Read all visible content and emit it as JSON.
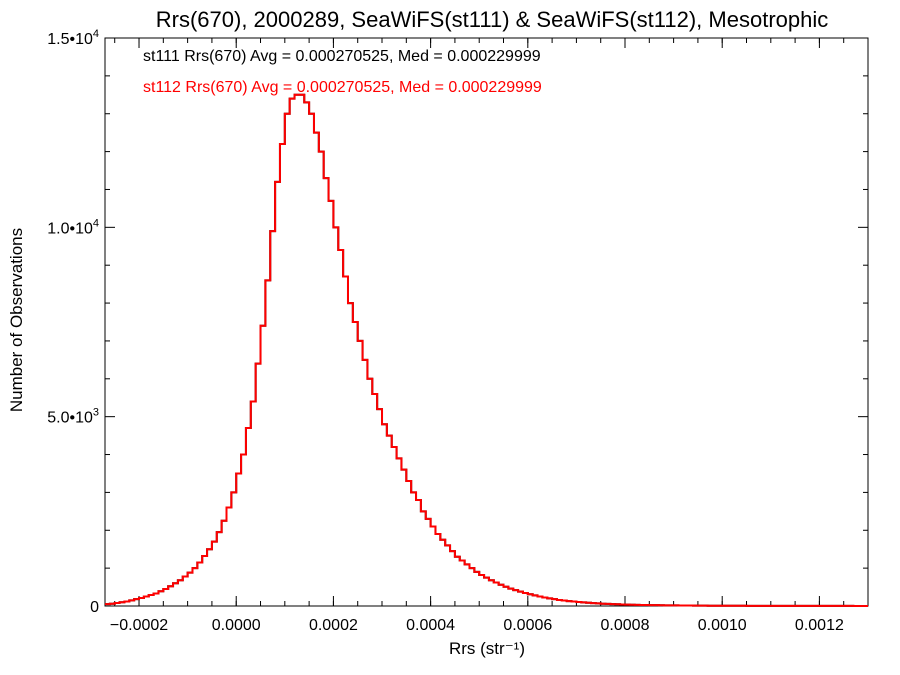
{
  "chart_data": {
    "type": "bar",
    "title": "Rrs(670), 2000289, SeaWiFS(st111) & SeaWiFS(st112), Mesotrophic",
    "xlabel": "Rrs (str⁻¹)",
    "ylabel": "Number of Observations",
    "xlim": [
      -0.00027,
      0.0013
    ],
    "ylim": [
      0,
      15000
    ],
    "x_ticks": [
      {
        "value": -0.0002,
        "label": "−0.0002"
      },
      {
        "value": 0.0,
        "label": "0.0000"
      },
      {
        "value": 0.0002,
        "label": "0.0002"
      },
      {
        "value": 0.0004,
        "label": "0.0004"
      },
      {
        "value": 0.0006,
        "label": "0.0006"
      },
      {
        "value": 0.0008,
        "label": "0.0008"
      },
      {
        "value": 0.001,
        "label": "0.0010"
      },
      {
        "value": 0.0012,
        "label": "0.0012"
      }
    ],
    "y_ticks": [
      {
        "value": 0,
        "label": "0"
      },
      {
        "value": 5000,
        "label": "5.0•103"
      },
      {
        "value": 10000,
        "label": "1.0•104"
      },
      {
        "value": 15000,
        "label": "1.5•104"
      }
    ],
    "annotations": [
      {
        "text": "st111 Rrs(670) Avg = 0.000270525, Med = 0.000229999",
        "color": "#000000"
      },
      {
        "text": "st112 Rrs(670) Avg = 0.000270525, Med = 0.000229999",
        "color": "#ff0000"
      }
    ],
    "series": [
      {
        "name": "st111",
        "color": "#000000",
        "bin_width": 1e-05,
        "x_start": -0.00027,
        "values": [
          50,
          60,
          80,
          100,
          120,
          150,
          180,
          210,
          250,
          290,
          330,
          390,
          450,
          520,
          600,
          680,
          780,
          880,
          1000,
          1150,
          1320,
          1500,
          1700,
          1950,
          2250,
          2600,
          3000,
          3500,
          4000,
          4700,
          5400,
          6400,
          7400,
          8600,
          9900,
          11200,
          12200,
          13000,
          13400,
          13500,
          13500,
          13300,
          13000,
          12500,
          12000,
          11300,
          10700,
          10000,
          9400,
          8700,
          8000,
          7500,
          7000,
          6500,
          6000,
          5600,
          5200,
          4800,
          4500,
          4200,
          3900,
          3600,
          3300,
          3000,
          2800,
          2500,
          2300,
          2100,
          1900,
          1750,
          1600,
          1450,
          1300,
          1200,
          1100,
          1000,
          900,
          820,
          750,
          680,
          620,
          560,
          510,
          460,
          420,
          380,
          345,
          310,
          280,
          250,
          225,
          200,
          180,
          160,
          145,
          130,
          118,
          105,
          95,
          85,
          76,
          68,
          61,
          55,
          50,
          45,
          41,
          37,
          34,
          31,
          28,
          26,
          24,
          22,
          20,
          18,
          16,
          15,
          14,
          13,
          12,
          11,
          10,
          9,
          8,
          7,
          7,
          6,
          6,
          5,
          5,
          5,
          4,
          4,
          4,
          4,
          3,
          3,
          3,
          3,
          3,
          2,
          2,
          2,
          2,
          2,
          2,
          2,
          2,
          2,
          2,
          2,
          2,
          2,
          1,
          1,
          1,
          1
        ]
      },
      {
        "name": "st112",
        "color": "#ff0000",
        "bin_width": 1e-05,
        "x_start": -0.00027,
        "values": [
          50,
          60,
          80,
          100,
          120,
          150,
          180,
          210,
          250,
          290,
          330,
          390,
          450,
          520,
          600,
          680,
          780,
          880,
          1000,
          1150,
          1320,
          1500,
          1700,
          1950,
          2250,
          2600,
          3000,
          3500,
          4000,
          4700,
          5400,
          6400,
          7400,
          8600,
          9900,
          11200,
          12200,
          13000,
          13400,
          13500,
          13500,
          13300,
          13000,
          12500,
          12000,
          11300,
          10700,
          10000,
          9400,
          8700,
          8000,
          7500,
          7000,
          6500,
          6000,
          5600,
          5200,
          4800,
          4500,
          4200,
          3900,
          3600,
          3300,
          3000,
          2800,
          2500,
          2300,
          2100,
          1900,
          1750,
          1600,
          1450,
          1300,
          1200,
          1100,
          1000,
          900,
          820,
          750,
          680,
          620,
          560,
          510,
          460,
          420,
          380,
          345,
          310,
          280,
          250,
          225,
          200,
          180,
          160,
          145,
          130,
          118,
          105,
          95,
          85,
          76,
          68,
          61,
          55,
          50,
          45,
          41,
          37,
          34,
          31,
          28,
          26,
          24,
          22,
          20,
          18,
          16,
          15,
          14,
          13,
          12,
          11,
          10,
          9,
          8,
          7,
          7,
          6,
          6,
          5,
          5,
          5,
          4,
          4,
          4,
          4,
          3,
          3,
          3,
          3,
          3,
          2,
          2,
          2,
          2,
          2,
          2,
          2,
          2,
          2,
          2,
          2,
          2,
          2,
          1,
          1,
          1,
          1
        ]
      }
    ]
  }
}
